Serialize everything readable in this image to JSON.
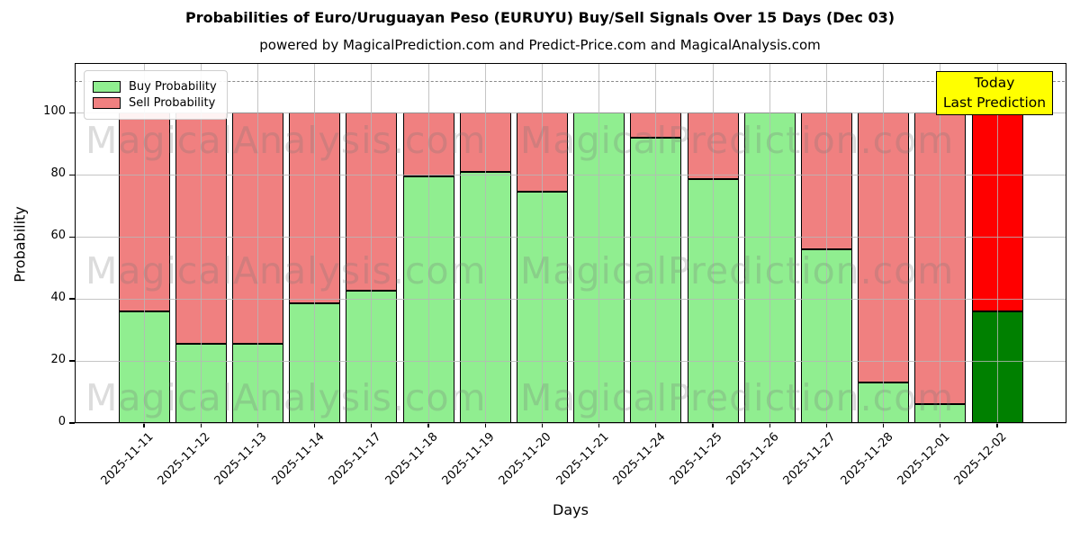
{
  "page": {
    "title": "Probabilities of Euro/Uruguayan Peso (EURUYU) Buy/Sell Signals Over 15 Days (Dec 03)",
    "subtitle": "powered by MagicalPrediction.com and Predict-Price.com and MagicalAnalysis.com"
  },
  "chart_data": {
    "type": "bar",
    "stacked": true,
    "title": "Probabilities of Euro/Uruguayan Peso (EURUYU) Buy/Sell Signals Over 15 Days (Dec 03)",
    "subtitle": "powered by MagicalPrediction.com and Predict-Price.com and MagicalAnalysis.com",
    "xlabel": "Days",
    "ylabel": "Probability",
    "ylim": [
      0,
      116
    ],
    "yticks": [
      0,
      20,
      40,
      60,
      80,
      100
    ],
    "grid": true,
    "dashed_line_y": 110,
    "categories": [
      "2025-11-11",
      "2025-11-12",
      "2025-11-13",
      "2025-11-14",
      "2025-11-17",
      "2025-11-18",
      "2025-11-19",
      "2025-11-20",
      "2025-11-21",
      "2025-11-24",
      "2025-11-25",
      "2025-11-26",
      "2025-11-27",
      "2025-11-28",
      "2025-12-01",
      "2025-12-02"
    ],
    "series": [
      {
        "name": "Buy Probability",
        "color": "#90ee90",
        "today_color": "#008000",
        "values": [
          36,
          25.5,
          25.5,
          38.5,
          42.5,
          79.5,
          81,
          74.5,
          100,
          92,
          78.5,
          100,
          56,
          13,
          6,
          36
        ]
      },
      {
        "name": "Sell Probability",
        "color": "#f08080",
        "today_color": "#ff0000",
        "values": [
          64,
          74.5,
          74.5,
          61.5,
          57.5,
          20.5,
          19,
          25.5,
          0,
          8,
          21.5,
          0,
          44,
          87,
          94,
          64
        ]
      }
    ],
    "today_index": 15,
    "legend": {
      "position": "upper-left",
      "entries": [
        {
          "label": "Buy Probability",
          "color": "#90ee90"
        },
        {
          "label": "Sell Probability",
          "color": "#f08080"
        }
      ]
    },
    "annotation": {
      "lines": [
        "Today",
        "Last Prediction"
      ],
      "bg": "#ffff00",
      "border": "#000000"
    },
    "watermarks": [
      {
        "left": "MagicalAnalysis.com",
        "right": "MagicalPrediction.com"
      },
      {
        "left": "MagicalAnalysis.com",
        "right": "MagicalPrediction.com"
      },
      {
        "left": "MagicalAnalysis.com",
        "right": "MagicalPrediction.com"
      }
    ]
  }
}
